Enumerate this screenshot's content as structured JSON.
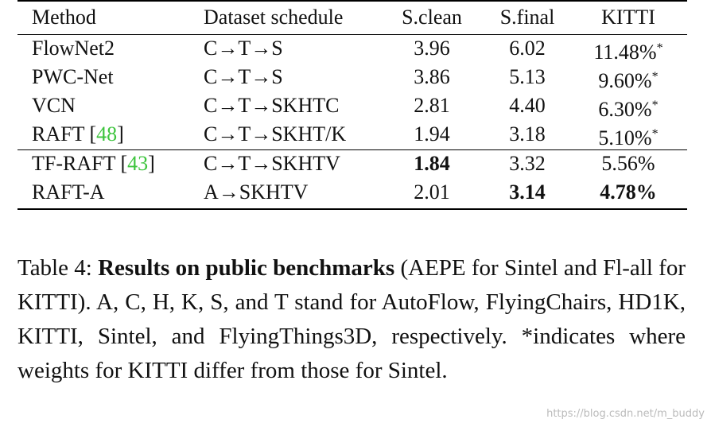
{
  "table": {
    "header": [
      "Method",
      "Dataset schedule",
      "S.clean",
      "S.final",
      "KITTI"
    ],
    "rows": [
      {
        "cells": [
          [
            "FlowNet2"
          ],
          "C→T→S",
          "3.96",
          "6.02",
          [
            "11.48%",
            "*"
          ]
        ]
      },
      {
        "cells": [
          [
            "PWC-Net"
          ],
          "C→T→S",
          "3.86",
          "5.13",
          [
            "9.60%",
            "*"
          ]
        ]
      },
      {
        "cells": [
          [
            "VCN"
          ],
          "C→T→SKHTC",
          "2.81",
          "4.40",
          [
            "6.30%",
            "*"
          ]
        ]
      },
      {
        "cells": [
          [
            "RAFT [",
            "48",
            "]"
          ],
          "C→T→SKHT/K",
          "1.94",
          "3.18",
          [
            "5.10%",
            "*"
          ]
        ]
      },
      {
        "cells": [
          [
            "TF-RAFT [",
            "43",
            "]"
          ],
          "C→T→SKHTV",
          "1.84",
          "3.32",
          [
            "5.56%"
          ]
        ],
        "bold": [
          2
        ]
      },
      {
        "cells": [
          [
            "RAFT-A"
          ],
          "A→SKHTV",
          "2.01",
          "3.14",
          [
            "4.78%"
          ]
        ],
        "bold": [
          3,
          4
        ]
      }
    ]
  },
  "caption": {
    "label": "Table 4: ",
    "bold": "Results on public benchmarks",
    "text": " (AEPE for Sintel and Fl-all for KITTI). A, C, H, K, S, and T stand for AutoFlow, FlyingChairs, HD1K, KITTI, Sintel, and FlyingThings3D, respectively.  *indicates where weights for KITTI differ from those for Sintel."
  },
  "watermark": "https://blog.csdn.net/m_buddy"
}
